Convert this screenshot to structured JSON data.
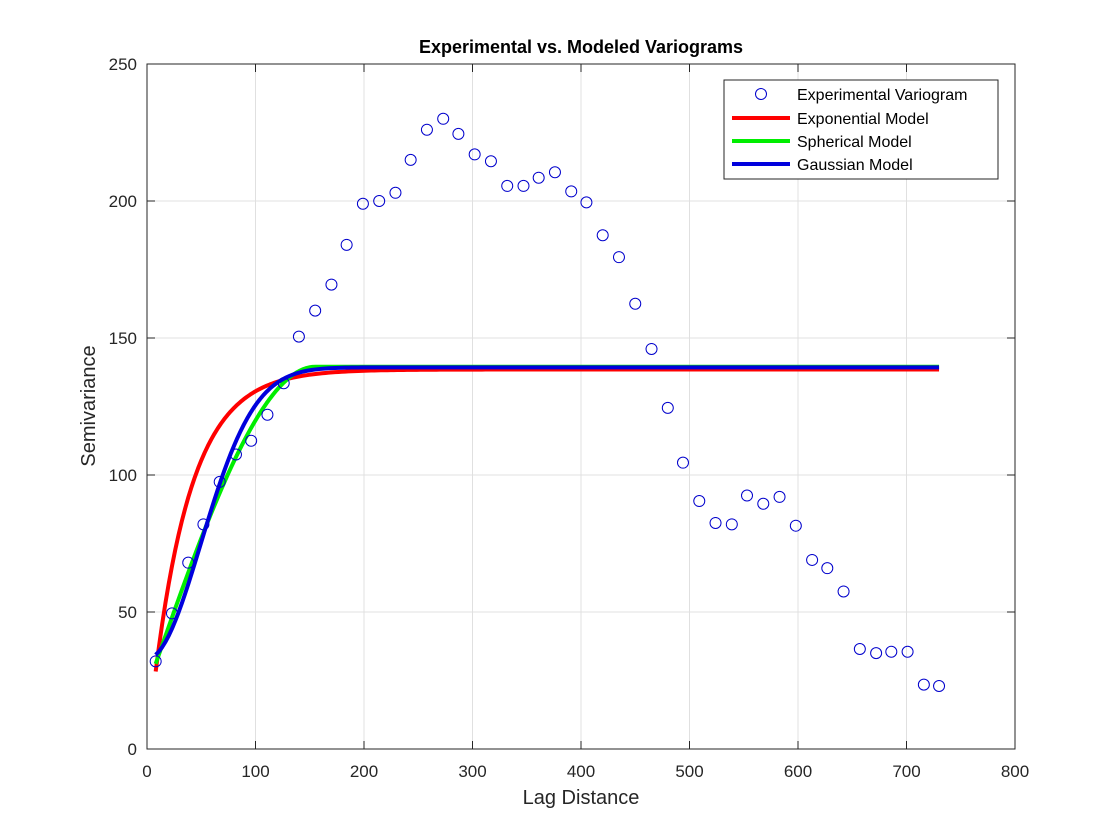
{
  "chart_data": {
    "type": "line",
    "title": "Experimental vs. Modeled Variograms",
    "xlabel": "Lag Distance",
    "ylabel": "Semivariance",
    "xlim": [
      0,
      800
    ],
    "ylim": [
      0,
      250
    ],
    "xticks": [
      0,
      100,
      200,
      300,
      400,
      500,
      600,
      700,
      800
    ],
    "yticks": [
      0,
      50,
      100,
      150,
      200,
      250
    ],
    "xtick_labels": [
      "0",
      "100",
      "200",
      "300",
      "400",
      "500",
      "600",
      "700",
      "800"
    ],
    "ytick_labels": [
      "0",
      "50",
      "100",
      "150",
      "200",
      "250"
    ],
    "grid": true,
    "legend_position": "top-right",
    "legend": [
      "Experimental Variogram",
      "Exponential Model",
      "Spherical Model",
      "Gaussian Model"
    ],
    "colors": {
      "experimental": "#0000cc",
      "exponential": "#ff0000",
      "spherical": "#00ee00",
      "gaussian": "#0000dd",
      "grid": "#e0e0e0",
      "axes": "#262626"
    },
    "experimental": {
      "name": "Experimental Variogram",
      "x": [
        8,
        23,
        38,
        52,
        67,
        82,
        96,
        111,
        126,
        140,
        155,
        170,
        184,
        199,
        214,
        229,
        243,
        258,
        273,
        287,
        302,
        317,
        332,
        347,
        361,
        376,
        391,
        405,
        420,
        435,
        450,
        465,
        480,
        494,
        509,
        524,
        539,
        553,
        568,
        583,
        598,
        613,
        627,
        642,
        657,
        672,
        686,
        701,
        716,
        730
      ],
      "y": [
        32,
        49.5,
        68,
        82,
        97.5,
        107.5,
        112.5,
        122,
        133.5,
        150.5,
        160,
        169.5,
        184,
        199,
        200,
        203,
        215,
        226,
        230,
        224.5,
        217,
        214.5,
        205.5,
        205.5,
        208.5,
        210.5,
        203.5,
        199.5,
        187.5,
        179.5,
        162.5,
        146,
        124.5,
        104.5,
        90.5,
        82.5,
        82,
        92.5,
        89.5,
        92,
        81.5,
        69,
        66,
        57.5,
        36.5,
        35,
        35.5,
        35.5,
        23.5,
        23
      ]
    },
    "models": {
      "exponential": {
        "name": "Exponential Model",
        "nugget": 0,
        "sill": 138.5,
        "range": 35
      },
      "spherical": {
        "name": "Spherical Model",
        "nugget": 22,
        "sill": 139.5,
        "range": 155
      },
      "gaussian": {
        "name": "Gaussian Model",
        "nugget": 33,
        "sill": 139.3,
        "range": 70
      },
      "x_start": 8,
      "x_end": 730
    }
  }
}
